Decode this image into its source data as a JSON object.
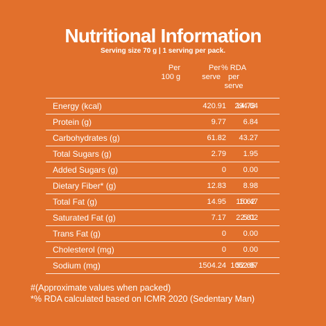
{
  "title": "Nutritional Information",
  "subtitle": "Serving size 70 g  |  1 serving per pack.",
  "columns": {
    "per100": "Per\n100 g",
    "serve": "Per\nserve",
    "rda": "% RDA\nper\nserve"
  },
  "rows": [
    {
      "label": "Energy (kcal)",
      "per100": "420.91",
      "serve": "294.64",
      "rda": "14.73"
    },
    {
      "label": "Protein (g)",
      "per100": "9.77",
      "serve": "6.84",
      "rda": ""
    },
    {
      "label": "Carbohydrates (g)",
      "per100": "61.82",
      "serve": "43.27",
      "rda": ""
    },
    {
      "label": "Total Sugars (g)",
      "per100": "2.79",
      "serve": "1.95",
      "rda": ""
    },
    {
      "label": "Added Sugars (g)",
      "per100": "0",
      "serve": "0.00",
      "rda": ""
    },
    {
      "label": "Dietary Fiber* (g)",
      "per100": "12.83",
      "serve": "8.98",
      "rda": ""
    },
    {
      "label": "Total Fat (g)",
      "per100": "14.95",
      "serve": "10.47",
      "rda": "15.62"
    },
    {
      "label": "Saturated Fat (g)",
      "per100": "7.17",
      "serve": "5.02",
      "rda": "22.81"
    },
    {
      "label": "Trans Fat (g)",
      "per100": "0",
      "serve": "0.00",
      "rda": ""
    },
    {
      "label": "Cholesterol (mg)",
      "per100": "0",
      "serve": "0.00",
      "rda": ""
    },
    {
      "label": "Sodium (mg)",
      "per100": "1504.24",
      "serve": "1052.97",
      "rda": "52.65"
    }
  ],
  "footnotes": [
    "#(Approximate values when packed)",
    "*% RDA calculated based on ICMR 2020 (Sedentary Man)"
  ],
  "colors": {
    "background": "#e2702c",
    "text": "#ffffff"
  }
}
